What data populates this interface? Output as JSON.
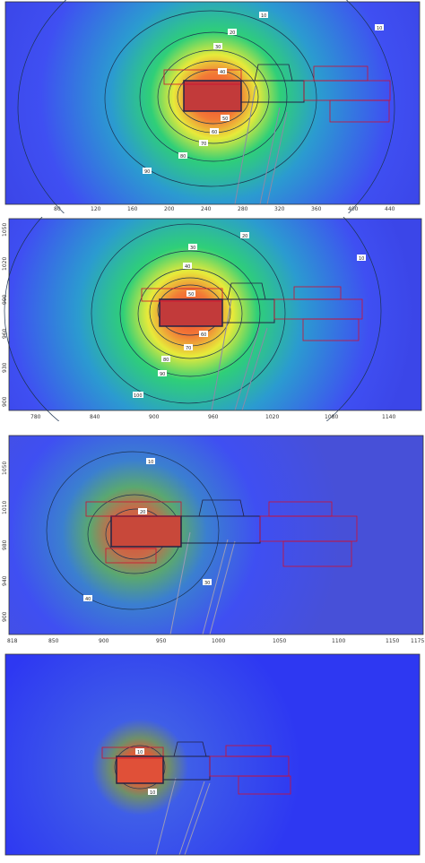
{
  "colors": {
    "field_low": "#3f4ff2",
    "field_mid": "#2fcf78",
    "field_yellow": "#e7ea3a",
    "field_high": "#f04530",
    "contour": "#1c3350",
    "footprint_red": "#d01030",
    "footprint_dark": "#222244"
  },
  "panels": [
    {
      "name": "panel-1",
      "x_ticks": [
        "80",
        "120",
        "160",
        "200",
        "240",
        "280",
        "320",
        "360",
        "400",
        "440"
      ],
      "y_ticks": [
        "",
        "",
        "",
        "",
        "",
        ""
      ],
      "contour_labels": [
        "10",
        "20",
        "30",
        "40",
        "50",
        "60",
        "70",
        "80",
        "90",
        "10"
      ]
    },
    {
      "name": "panel-2",
      "x_ticks": [
        "780",
        "840",
        "900",
        "960",
        "1020",
        "1080",
        "1140"
      ],
      "y_ticks": [
        "1050",
        "1020",
        "990",
        "960",
        "930",
        "900"
      ],
      "contour_labels": [
        "10",
        "20",
        "30",
        "40",
        "50",
        "60",
        "70",
        "80",
        "90",
        "100"
      ]
    },
    {
      "name": "panel-3",
      "x_ticks": [
        "818",
        "850",
        "900",
        "950",
        "1000",
        "1050",
        "1100",
        "1150",
        "1175"
      ],
      "y_ticks": [
        "1050",
        "1010",
        "980",
        "940",
        "900"
      ],
      "contour_labels": [
        "10",
        "20",
        "30",
        "40"
      ]
    },
    {
      "name": "panel-4",
      "x_ticks": [
        "",
        "",
        "",
        "",
        "",
        "",
        "",
        ""
      ],
      "y_ticks": [
        "",
        "",
        ""
      ],
      "contour_labels": [
        "10",
        "10"
      ]
    }
  ]
}
